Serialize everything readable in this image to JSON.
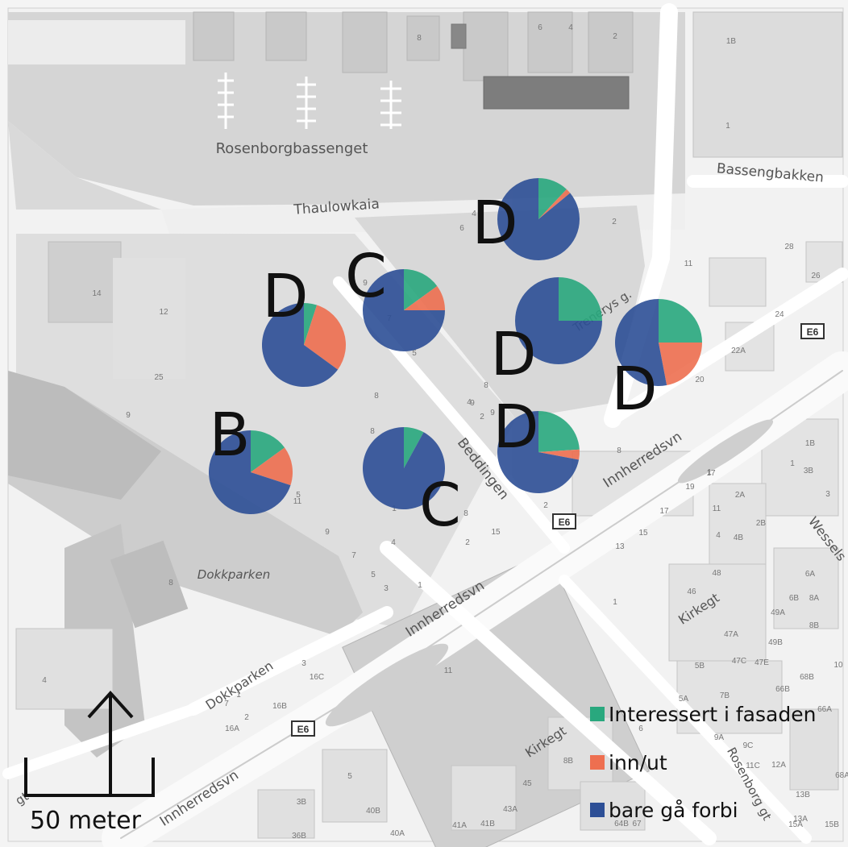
{
  "map": {
    "places": {
      "rosenborgbassenget": "Rosenborgbassenget",
      "thaulowkaia": "Thaulowkaia",
      "bassengbakken": "Bassengbakken",
      "beddingen": "Beddingen",
      "innherredsvn_1": "Innherredsvn",
      "innherredsvn_2": "Innherredsvn",
      "innherredsvn_3": "Innherredsvn",
      "dokkparken_area": "Dokkparken",
      "dokkparken_street": "Dokkparken",
      "kirkegt_1": "Kirkegt",
      "kirkegt_2": "Kirkegt",
      "trenerys_g": "Trenerys g.",
      "rosenborg_gt": "Rosenborg gt",
      "wessels": "Wessels",
      "gt_sw": "gt"
    },
    "road_shields": [
      "E6",
      "E6",
      "E6"
    ],
    "house_numbers": [
      "14",
      "12",
      "25",
      "8",
      "9",
      "7",
      "5",
      "8",
      "6",
      "4",
      "2",
      "28",
      "26",
      "24",
      "22A",
      "20",
      "11",
      "1B",
      "1",
      "6",
      "8",
      "4",
      "2",
      "8",
      "9",
      "11",
      "9",
      "7",
      "5",
      "3",
      "4",
      "2",
      "1",
      "8",
      "2",
      "1",
      "19",
      "17",
      "15",
      "13",
      "11",
      "2A",
      "2B",
      "4",
      "4B",
      "48",
      "46",
      "1",
      "1B",
      "3B",
      "1",
      "3",
      "6A",
      "6B",
      "8A",
      "8B",
      "49A",
      "49B",
      "47A",
      "47C",
      "47E",
      "10",
      "68B",
      "66B",
      "5B",
      "7B",
      "5A",
      "9A",
      "9C",
      "11C",
      "12A",
      "13B",
      "15A",
      "15B",
      "13A",
      "64B",
      "66A",
      "68A",
      "67",
      "6",
      "8B",
      "45",
      "43A",
      "41B",
      "41A",
      "40B",
      "40A",
      "3B",
      "36B",
      "5",
      "3",
      "16C",
      "16B",
      "16A",
      "2",
      "1",
      "7",
      "4",
      "11",
      "8",
      "9",
      "5",
      "8",
      "17",
      "15",
      "4",
      "2",
      "1",
      "9"
    ],
    "scale": {
      "label": "50 meter"
    },
    "compass": {
      "name": "north-arrow"
    }
  },
  "legend": {
    "items": [
      {
        "label": "Interessert i fasaden",
        "color": "#29a87e"
      },
      {
        "label": "inn/ut",
        "color": "#ee6f50"
      },
      {
        "label": "bare gå forbi",
        "color": "#2d4f96"
      }
    ]
  },
  "chart_data": {
    "type": "pie",
    "series_names": [
      "Interessert i fasaden",
      "inn/ut",
      "bare gå forbi"
    ],
    "colors": [
      "#29a87e",
      "#ee6f50",
      "#2d4f96"
    ],
    "pies": [
      {
        "id": "pie-d-top",
        "zone": "D",
        "values": [
          0.12,
          0.02,
          0.86
        ]
      },
      {
        "id": "pie-c-upper",
        "zone": "C",
        "values": [
          0.15,
          0.1,
          0.75
        ]
      },
      {
        "id": "pie-d-left",
        "zone": "D",
        "values": [
          0.05,
          0.3,
          0.65
        ]
      },
      {
        "id": "pie-d-middle",
        "zone": "D",
        "values": [
          0.25,
          0.0,
          0.75
        ]
      },
      {
        "id": "pie-d-right",
        "zone": "D",
        "values": [
          0.25,
          0.22,
          0.53
        ]
      },
      {
        "id": "pie-b",
        "zone": "B",
        "values": [
          0.15,
          0.15,
          0.7
        ]
      },
      {
        "id": "pie-c-lower",
        "zone": "C",
        "values": [
          0.08,
          0.0,
          0.92
        ]
      },
      {
        "id": "pie-d-lower",
        "zone": "D",
        "values": [
          0.24,
          0.04,
          0.72
        ]
      }
    ]
  },
  "zone_labels": [
    "D",
    "C",
    "D",
    "D",
    "D",
    "D",
    "B",
    "C"
  ]
}
